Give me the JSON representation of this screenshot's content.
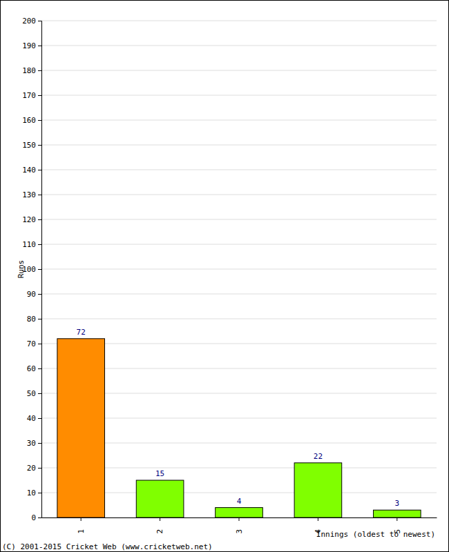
{
  "chart_data": {
    "type": "bar",
    "categories": [
      "1",
      "2",
      "3",
      "4",
      "5"
    ],
    "values": [
      72,
      15,
      4,
      22,
      3
    ],
    "colors": [
      "#ff8c00",
      "#80ff00",
      "#80ff00",
      "#80ff00",
      "#80ff00"
    ],
    "xlabel": "Innings (oldest to newest)",
    "ylabel": "Runs",
    "footer": "(C) 2001-2015 Cricket Web (www.cricketweb.net)",
    "ylim": [
      0,
      200
    ],
    "yticks": [
      0,
      10,
      20,
      30,
      40,
      50,
      60,
      70,
      80,
      90,
      100,
      110,
      120,
      130,
      140,
      150,
      160,
      170,
      180,
      190,
      200
    ],
    "grid": true,
    "data_labels": true
  }
}
